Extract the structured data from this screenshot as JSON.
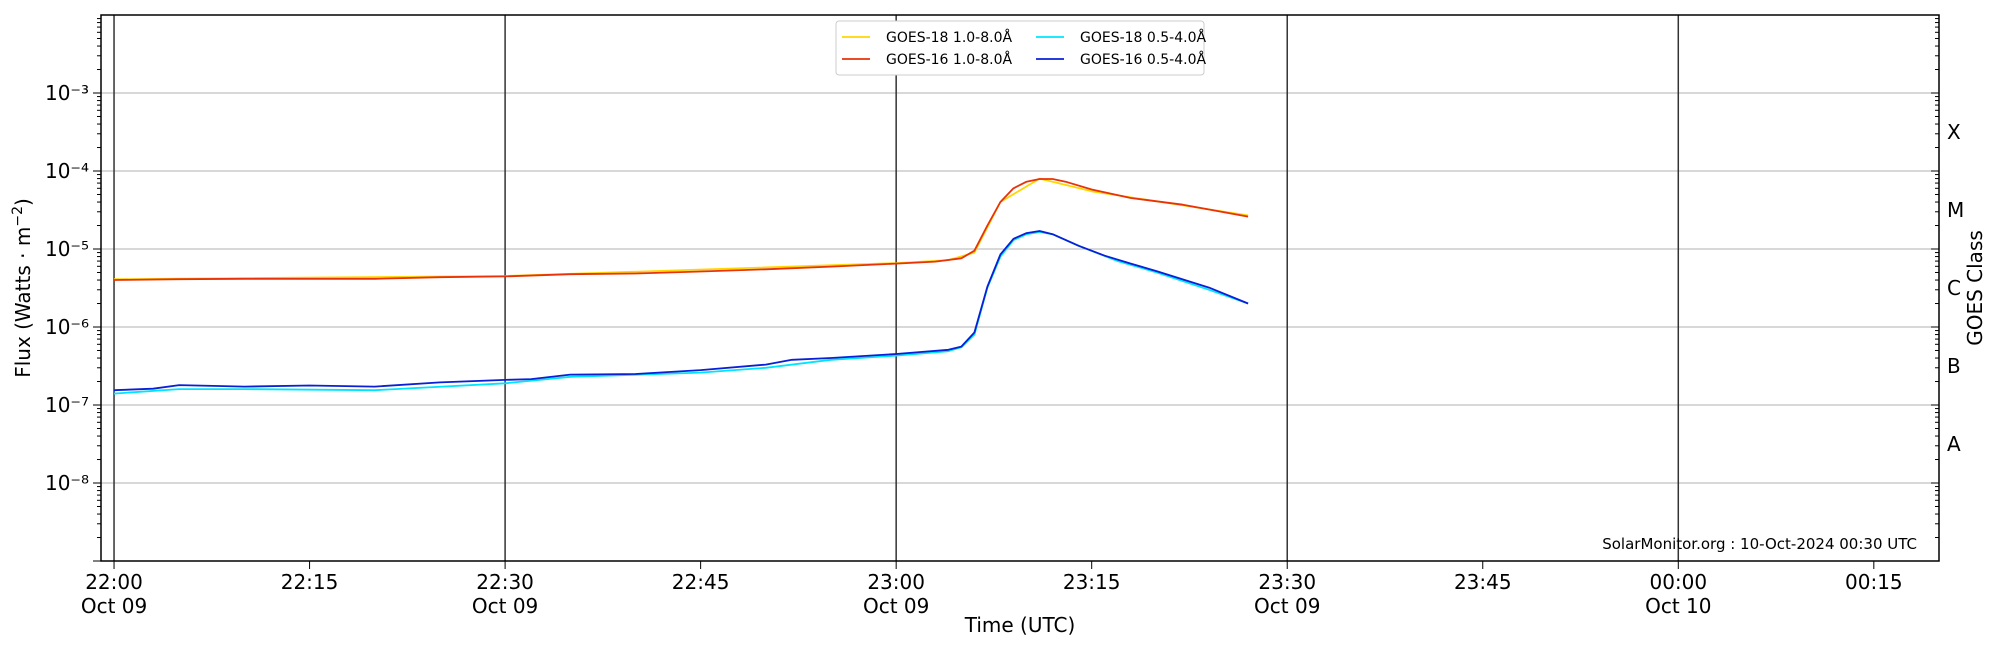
{
  "chart_data": {
    "type": "line",
    "title": "",
    "xlabel": "Time (UTC)",
    "ylabel": "Flux (Watts · m⁻²)",
    "y2label": "GOES Class",
    "y_scale": "log",
    "ylim": [
      1e-09,
      0.01
    ],
    "xlim": [
      "2024-10-09 21:59",
      "2024-10-10 00:20"
    ],
    "grid": "horizontal at decades; vertical black lines every 30 minutes",
    "y_tick_labels": [
      "10⁻³",
      "10⁻⁴",
      "10⁻⁵",
      "10⁻⁶",
      "10⁻⁷",
      "10⁻⁸"
    ],
    "y_tick_values": [
      0.001,
      0.0001,
      1e-05,
      1e-06,
      1e-07,
      1e-08
    ],
    "x_ticks": [
      {
        "time": "2024-10-09 22:00",
        "label": "22:00",
        "sublabel": "Oct 09"
      },
      {
        "time": "2024-10-09 22:15",
        "label": "22:15",
        "sublabel": ""
      },
      {
        "time": "2024-10-09 22:30",
        "label": "22:30",
        "sublabel": "Oct 09"
      },
      {
        "time": "2024-10-09 22:45",
        "label": "22:45",
        "sublabel": ""
      },
      {
        "time": "2024-10-09 23:00",
        "label": "23:00",
        "sublabel": "Oct 09"
      },
      {
        "time": "2024-10-09 23:15",
        "label": "23:15",
        "sublabel": ""
      },
      {
        "time": "2024-10-09 23:30",
        "label": "23:30",
        "sublabel": "Oct 09"
      },
      {
        "time": "2024-10-09 23:45",
        "label": "23:45",
        "sublabel": ""
      },
      {
        "time": "2024-10-10 00:00",
        "label": "00:00",
        "sublabel": "Oct 10"
      },
      {
        "time": "2024-10-10 00:15",
        "label": "00:15",
        "sublabel": ""
      }
    ],
    "goes_classes": [
      {
        "label": "X",
        "flux": 0.000316
      },
      {
        "label": "M",
        "flux": 3.16e-05
      },
      {
        "label": "C",
        "flux": 3.16e-06
      },
      {
        "label": "B",
        "flux": 3.16e-07
      },
      {
        "label": "A",
        "flux": 3.16e-08
      }
    ],
    "legend": {
      "placement": "top-center",
      "entries": [
        "GOES-18 1.0-8.0Å",
        "GOES-18 0.5-4.0Å",
        "GOES-16 1.0-8.0Å",
        "GOES-16 0.5-4.0Å"
      ]
    },
    "annotation": "SolarMonitor.org : 10-Oct-2024 00:30 UTC",
    "series": [
      {
        "name": "GOES-18 1.0-8.0Å",
        "color": "#ffd700",
        "x": [
          "2024-10-09 22:00",
          "2024-10-09 22:30",
          "2024-10-09 23:00",
          "2024-10-09 23:04",
          "2024-10-09 23:06",
          "2024-10-09 23:08",
          "2024-10-09 23:11",
          "2024-10-09 23:15",
          "2024-10-09 23:27"
        ],
        "y": [
          4.1e-06,
          4.5e-06,
          6.6e-06,
          7.2e-06,
          9e-06,
          4e-05,
          8e-05,
          5.5e-05,
          2.7e-05
        ]
      },
      {
        "name": "GOES-18 0.5-4.0Å",
        "color": "#00e5ff",
        "x": [
          "2024-10-09 22:00",
          "2024-10-09 22:05",
          "2024-10-09 22:10",
          "2024-10-09 22:20",
          "2024-10-09 22:30",
          "2024-10-09 22:35",
          "2024-10-09 22:45",
          "2024-10-09 22:50",
          "2024-10-09 22:55",
          "2024-10-09 23:00",
          "2024-10-09 23:04",
          "2024-10-09 23:05",
          "2024-10-09 23:06",
          "2024-10-09 23:07",
          "2024-10-09 23:08",
          "2024-10-09 23:09",
          "2024-10-09 23:10",
          "2024-10-09 23:11",
          "2024-10-09 23:12",
          "2024-10-09 23:14",
          "2024-10-09 23:17",
          "2024-10-09 23:20",
          "2024-10-09 23:24",
          "2024-10-09 23:27"
        ],
        "y": [
          1.4e-07,
          1.6e-07,
          1.6e-07,
          1.55e-07,
          1.9e-07,
          2.3e-07,
          2.6e-07,
          3e-07,
          3.8e-07,
          4.3e-07,
          4.9e-07,
          5.5e-07,
          8e-07,
          3.2e-06,
          8e-06,
          1.3e-05,
          1.55e-05,
          1.65e-05,
          1.55e-05,
          1.1e-05,
          7e-06,
          5e-06,
          3e-06,
          2e-06
        ]
      },
      {
        "name": "GOES-16 1.0-8.0Å",
        "color": "#e8320a",
        "x": [
          "2024-10-09 22:00",
          "2024-10-09 22:05",
          "2024-10-09 22:10",
          "2024-10-09 22:20",
          "2024-10-09 22:25",
          "2024-10-09 22:30",
          "2024-10-09 22:35",
          "2024-10-09 22:40",
          "2024-10-09 22:45",
          "2024-10-09 22:50",
          "2024-10-09 22:55",
          "2024-10-09 23:00",
          "2024-10-09 23:03",
          "2024-10-09 23:05",
          "2024-10-09 23:06",
          "2024-10-09 23:07",
          "2024-10-09 23:08",
          "2024-10-09 23:09",
          "2024-10-09 23:10",
          "2024-10-09 23:11",
          "2024-10-09 23:12",
          "2024-10-09 23:13",
          "2024-10-09 23:15",
          "2024-10-09 23:18",
          "2024-10-09 23:22",
          "2024-10-09 23:27"
        ],
        "y": [
          4e-06,
          4.1e-06,
          4.15e-06,
          4.15e-06,
          4.35e-06,
          4.45e-06,
          4.75e-06,
          4.85e-06,
          5.15e-06,
          5.5e-06,
          5.95e-06,
          6.5e-06,
          6.9e-06,
          7.6e-06,
          9.5e-06,
          2e-05,
          4e-05,
          6e-05,
          7.3e-05,
          7.9e-05,
          7.9e-05,
          7.3e-05,
          5.8e-05,
          4.5e-05,
          3.7e-05,
          2.6e-05
        ]
      },
      {
        "name": "GOES-16 0.5-4.0Å",
        "color": "#0a1fd6",
        "x": [
          "2024-10-09 22:00",
          "2024-10-09 22:03",
          "2024-10-09 22:05",
          "2024-10-09 22:08",
          "2024-10-09 22:10",
          "2024-10-09 22:15",
          "2024-10-09 22:20",
          "2024-10-09 22:25",
          "2024-10-09 22:30",
          "2024-10-09 22:32",
          "2024-10-09 22:35",
          "2024-10-09 22:40",
          "2024-10-09 22:45",
          "2024-10-09 22:50",
          "2024-10-09 22:52",
          "2024-10-09 22:55",
          "2024-10-09 23:00",
          "2024-10-09 23:02",
          "2024-10-09 23:04",
          "2024-10-09 23:05",
          "2024-10-09 23:06",
          "2024-10-09 23:07",
          "2024-10-09 23:08",
          "2024-10-09 23:09",
          "2024-10-09 23:10",
          "2024-10-09 23:11",
          "2024-10-09 23:12",
          "2024-10-09 23:14",
          "2024-10-09 23:16",
          "2024-10-09 23:18",
          "2024-10-09 23:20",
          "2024-10-09 23:24",
          "2024-10-09 23:27"
        ],
        "y": [
          1.55e-07,
          1.62e-07,
          1.8e-07,
          1.75e-07,
          1.72e-07,
          1.78e-07,
          1.72e-07,
          1.95e-07,
          2.1e-07,
          2.15e-07,
          2.45e-07,
          2.5e-07,
          2.8e-07,
          3.3e-07,
          3.8e-07,
          4e-07,
          4.5e-07,
          4.8e-07,
          5.1e-07,
          5.6e-07,
          8.5e-07,
          3.3e-06,
          8.5e-06,
          1.35e-05,
          1.6e-05,
          1.7e-05,
          1.55e-05,
          1.1e-05,
          8.2e-06,
          6.5e-06,
          5.2e-06,
          3.2e-06,
          2e-06
        ]
      }
    ]
  }
}
